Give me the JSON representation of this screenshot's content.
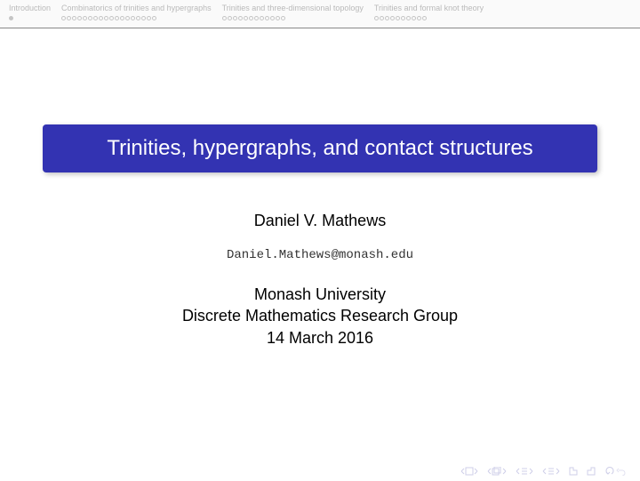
{
  "nav": {
    "sections": [
      {
        "title": "Introduction",
        "total": 1,
        "current": 0
      },
      {
        "title": "Combinatorics of trinities and hypergraphs",
        "total": 18,
        "current": -1
      },
      {
        "title": "Trinities and three-dimensional topology",
        "total": 12,
        "current": -1
      },
      {
        "title": "Trinities and formal knot theory",
        "total": 10,
        "current": -1
      }
    ]
  },
  "slide": {
    "title": "Trinities, hypergraphs, and contact structures",
    "author": "Daniel V. Mathews",
    "email": "Daniel.Mathews@monash.edu",
    "affiliation1": "Monash University",
    "affiliation2": "Discrete Mathematics Research Group",
    "date": "14 March 2016"
  },
  "colors": {
    "title_bg": "#3333b2",
    "title_fg": "#ffffff",
    "nav_fg": "#bababa",
    "footer_icon": "#cfcfe8",
    "footer_icon_accent": "#c8c8d8"
  }
}
